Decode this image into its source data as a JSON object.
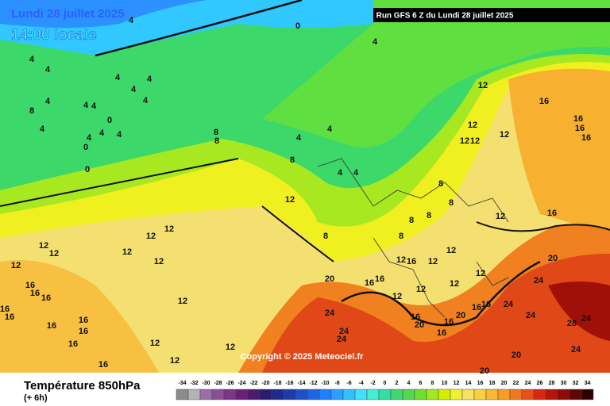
{
  "header": {
    "date": "Lundi 28 juillet 2025",
    "time": "14:00 locale",
    "run": "Run GFS 6 Z du Lundi 28 juillet 2025"
  },
  "copyright": "Copyright © 2025 Meteociel.fr",
  "footer": {
    "title": "Température 850hPa",
    "subtitle": "(+ 6h)"
  },
  "scale": {
    "ticks": [
      -34,
      -32,
      -30,
      -28,
      -26,
      -24,
      -22,
      -20,
      -18,
      -16,
      -14,
      -12,
      -10,
      -8,
      -6,
      -4,
      -2,
      0,
      2,
      4,
      6,
      8,
      10,
      12,
      14,
      16,
      18,
      20,
      22,
      24,
      26,
      28,
      30,
      32,
      34
    ],
    "colors": [
      "#8c8c8c",
      "#b4b4b4",
      "#9b6fa6",
      "#8a4f94",
      "#7a3585",
      "#6a1f78",
      "#4e1a6e",
      "#2c1a6e",
      "#1e2a8c",
      "#1e3ca8",
      "#1e50c8",
      "#1e64e6",
      "#1e80ff",
      "#2ca0ff",
      "#30c0ff",
      "#40e0ff",
      "#40f0d0",
      "#30e0a0",
      "#40d870",
      "#50d850",
      "#70e030",
      "#a0e820",
      "#d0f000",
      "#f0f030",
      "#f8e060",
      "#f8d040",
      "#f8b830",
      "#f89c28",
      "#f07820",
      "#e85018",
      "#d82810",
      "#b81408",
      "#900808",
      "#600404",
      "#300000"
    ]
  },
  "map_labels": [
    4,
    0,
    4,
    4,
    4,
    4,
    4,
    4,
    4,
    4,
    4,
    4,
    8,
    0,
    4,
    4,
    4,
    4,
    0,
    0,
    8,
    8,
    4,
    4,
    8,
    4,
    4,
    12,
    16,
    16,
    16,
    16,
    12,
    12,
    12,
    12,
    12,
    12,
    12,
    12,
    12,
    12,
    12,
    12,
    16,
    16,
    16,
    16,
    16,
    16,
    16,
    16,
    12,
    12,
    12,
    16,
    12,
    16,
    16,
    20,
    24,
    24,
    24,
    28,
    24,
    24,
    20,
    20,
    24,
    24,
    24,
    20,
    16,
    16,
    16,
    20,
    16,
    16,
    20,
    16,
    16,
    12,
    12,
    12,
    16,
    12,
    8,
    8,
    8,
    8,
    8,
    8,
    12,
    12,
    12,
    12
  ]
}
